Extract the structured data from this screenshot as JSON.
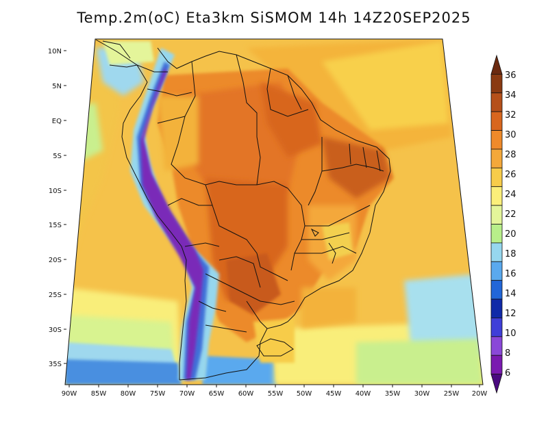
{
  "title": "Temp.2m(oC) Eta3km SiSMOM 14h 14Z20SEP2025",
  "map": {
    "lat_labels": [
      "10N",
      "5N",
      "EQ",
      "5S",
      "10S",
      "15S",
      "20S",
      "25S",
      "30S",
      "35S"
    ],
    "lon_labels": [
      "90W",
      "85W",
      "80W",
      "75W",
      "70W",
      "65W",
      "60W",
      "55W",
      "50W",
      "45W",
      "40W",
      "35W",
      "30W",
      "25W",
      "20W"
    ]
  },
  "colorbar": {
    "labels": [
      "36",
      "34",
      "32",
      "30",
      "28",
      "26",
      "24",
      "22",
      "20",
      "18",
      "16",
      "14",
      "12",
      "10",
      "8",
      "6"
    ],
    "colors": [
      "#6b2a10",
      "#8a3a12",
      "#b5501a",
      "#d8661e",
      "#ef8a2a",
      "#f4a83a",
      "#f7cc4a",
      "#fbef7a",
      "#e4f59a",
      "#b8ef8a",
      "#96d7ee",
      "#5aa9ee",
      "#2266d8",
      "#0f2aa8",
      "#3f3fd8",
      "#8a48d8",
      "#7a1ab0",
      "#4a0a80"
    ]
  }
}
